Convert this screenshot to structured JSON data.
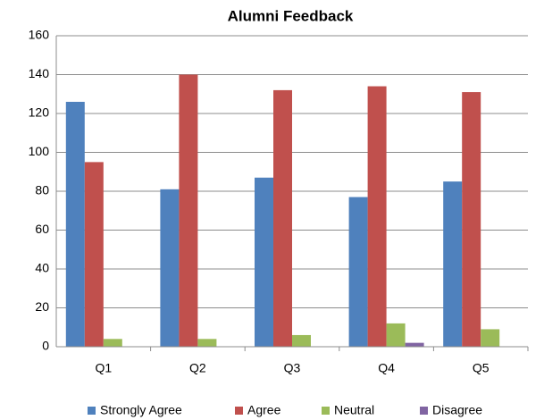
{
  "chart_data": {
    "type": "bar",
    "title": "Alumni Feedback",
    "categories": [
      "Q1",
      "Q2",
      "Q3",
      "Q4",
      "Q5"
    ],
    "series": [
      {
        "name": "Strongly Agree",
        "color": "#4f81bd",
        "values": [
          126,
          81,
          87,
          77,
          85
        ]
      },
      {
        "name": "Agree",
        "color": "#c0504d",
        "values": [
          95,
          140,
          132,
          134,
          131
        ]
      },
      {
        "name": "Neutral",
        "color": "#9bbb59",
        "values": [
          4,
          4,
          6,
          12,
          9
        ]
      },
      {
        "name": "Disagree",
        "color": "#8064a2",
        "values": [
          0,
          0,
          0,
          2,
          0
        ]
      }
    ],
    "ylim": [
      0,
      160
    ],
    "yticks": [
      0,
      20,
      40,
      60,
      80,
      100,
      120,
      140,
      160
    ],
    "grid": true,
    "legend": "bottom"
  }
}
